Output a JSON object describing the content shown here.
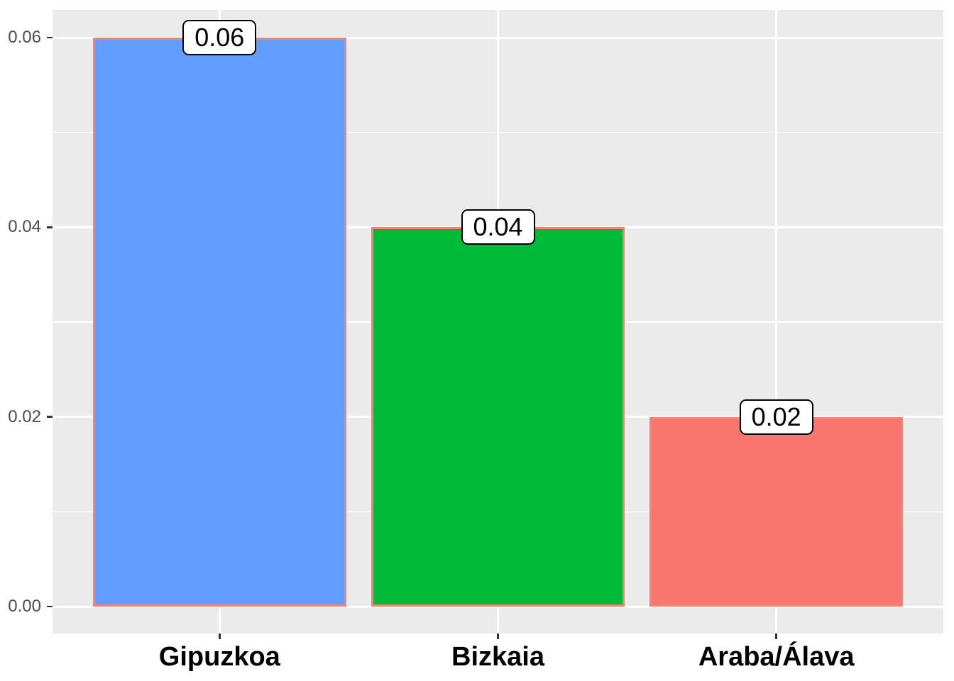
{
  "chart_data": {
    "type": "bar",
    "title": "",
    "xlabel": "",
    "ylabel": "",
    "categories": [
      "Gipuzkoa",
      "Bizkaia",
      "Araba/Álava"
    ],
    "category_slugs": [
      "gipuzkoa",
      "bizkaia",
      "araba-alava"
    ],
    "values": [
      0.06,
      0.04,
      0.02
    ],
    "data_labels": [
      "0.06",
      "0.04",
      "0.02"
    ],
    "bar_fill_colors": [
      "#619CFF",
      "#00BA38",
      "#F8766D"
    ],
    "bar_border_color": "#FA8072",
    "y_axis": {
      "tick_labels": [
        "0.00",
        "0.02",
        "0.04",
        "0.06"
      ],
      "tick_values": [
        0,
        0.02,
        0.04,
        0.06
      ],
      "minor_values": [
        0.01,
        0.03,
        0.05
      ],
      "range": [
        0,
        0.063
      ]
    },
    "legend": "none",
    "grid": "white major and minor horizontal lines, white vertical lines at category centers, on gray panel",
    "style": {
      "panel_background": "#EBEBEB",
      "grid_color": "#FFFFFF",
      "y_axis_text_color": "#4D4D4D",
      "x_axis_text_color": "#000000",
      "tick_mark_color": "#333333",
      "label_box_fill": "#FFFFFF",
      "label_box_border": "#000000"
    }
  }
}
